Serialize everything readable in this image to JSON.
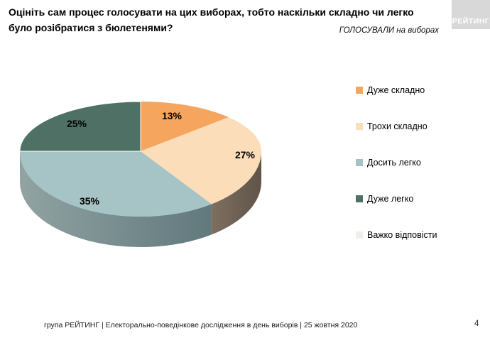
{
  "slide": {
    "title": "Оцініть сам процес голосувати на цих виборах, тобто наскільки складно чи легко було розібратися з бюлетенями?",
    "subtitle": "ГОЛОСУВАЛИ на виборах",
    "logo_text": "РЕЙТИНГ",
    "footer": "група РЕЙТИНГ | Електорально-поведінкове дослідження в день виборів | 25 жовтня 2020",
    "page_number": "4"
  },
  "legend": {
    "items": [
      {
        "label": "Дуже складно"
      },
      {
        "label": "Трохи складно"
      },
      {
        "label": "Досить легко"
      },
      {
        "label": "Дуже легко"
      },
      {
        "label": "Важко відповісти"
      }
    ]
  },
  "chart_data": {
    "type": "pie",
    "style": "3d",
    "title": "Оцініть сам процес голосувати на цих виборах, тобто наскільки складно чи легко було розібратися з бюлетенями?",
    "subtitle": "ГОЛОСУВАЛИ на виборах",
    "labels": [
      "Дуже складно",
      "Трохи складно",
      "Досить легко",
      "Дуже легко",
      "Важко відповісти"
    ],
    "values": [
      13,
      27,
      35,
      25,
      0
    ],
    "unit": "%",
    "data_labels": [
      "13%",
      "27%",
      "35%",
      "25%"
    ],
    "colors": [
      "#F5A55E",
      "#FBDEB9",
      "#A6C3C5",
      "#4F7065",
      "#F0EFEC"
    ],
    "wall_gradients": {
      "peach": [
        "#7E6F60",
        "#5F5448"
      ],
      "blue": [
        "#91A3A2",
        "#61787D"
      ]
    },
    "separator_color": "#FFFFFF",
    "start_angle_deg": 0,
    "direction": "clockwise",
    "legend_position": "right",
    "background": "#FFFFFF",
    "logo_background": "#D8D8D8"
  }
}
